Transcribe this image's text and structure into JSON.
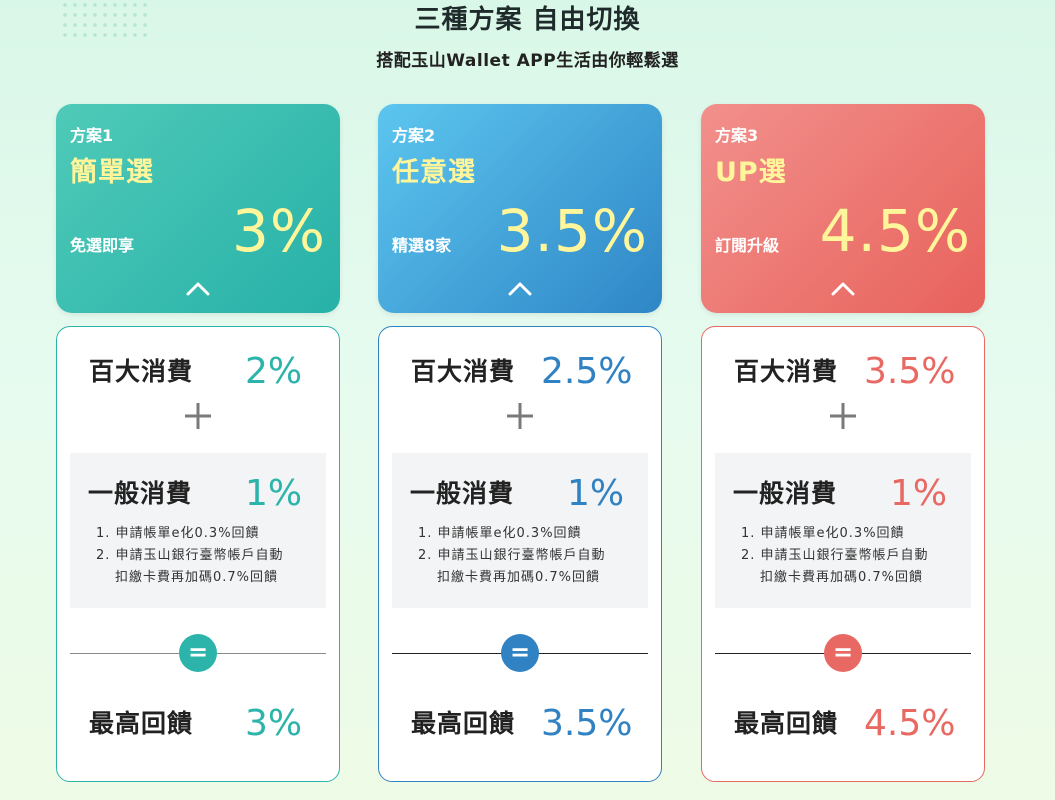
{
  "header": {
    "title": "三種方案 自由切換",
    "subtitle": "搭配玉山Wallet APP生活由你輕鬆選"
  },
  "colors": {
    "teal": "#2cb4aa",
    "blue": "#3182c2",
    "coral": "#e86963",
    "highlight_yellow": "#fff59a"
  },
  "plans": [
    {
      "no": "方案1",
      "name": "簡單選",
      "sub": "免選即享",
      "rate": "3%",
      "top_label": "百大消費",
      "top_pct": "2%",
      "general_label": "一般消費",
      "general_pct": "1%",
      "note1": "1. 申請帳單e化0.3%回饋",
      "note2a": "2. 申請玉山銀行臺幣帳戶自動",
      "note2b": "扣繳卡費再加碼0.7%回饋",
      "eq": "=",
      "max_label": "最高回饋",
      "max_pct": "3%"
    },
    {
      "no": "方案2",
      "name": "任意選",
      "sub": "精選8家",
      "rate": "3.5%",
      "top_label": "百大消費",
      "top_pct": "2.5%",
      "general_label": "一般消費",
      "general_pct": "1%",
      "note1": "1. 申請帳單e化0.3%回饋",
      "note2a": "2. 申請玉山銀行臺幣帳戶自動",
      "note2b": "扣繳卡費再加碼0.7%回饋",
      "eq": "=",
      "max_label": "最高回饋",
      "max_pct": "3.5%"
    },
    {
      "no": "方案3",
      "name": "UP選",
      "sub": "訂閱升級",
      "rate": "4.5%",
      "top_label": "百大消費",
      "top_pct": "3.5%",
      "general_label": "一般消費",
      "general_pct": "1%",
      "note1": "1. 申請帳單e化0.3%回饋",
      "note2a": "2. 申請玉山銀行臺幣帳戶自動",
      "note2b": "扣繳卡費再加碼0.7%回饋",
      "eq": "=",
      "max_label": "最高回饋",
      "max_pct": "4.5%"
    }
  ]
}
